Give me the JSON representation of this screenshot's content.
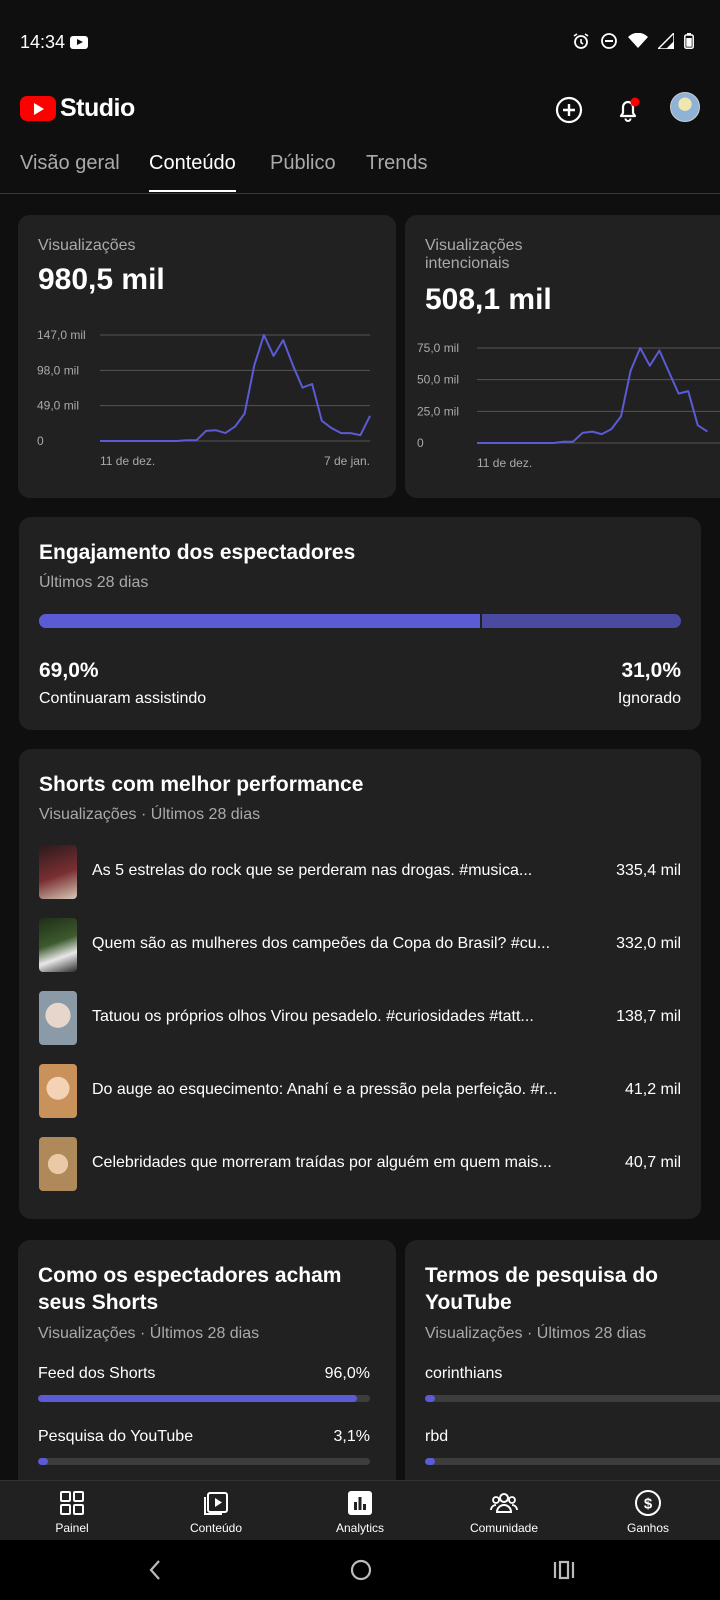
{
  "status_bar": {
    "time": "14:34"
  },
  "header": {
    "logo_text": "Studio"
  },
  "tabs": [
    {
      "label": "Visão geral"
    },
    {
      "label": "Conteúdo"
    },
    {
      "label": "Público"
    },
    {
      "label": "Trends"
    }
  ],
  "views_card": {
    "label": "Visualizações",
    "value": "980,5 mil",
    "chart_data": {
      "type": "line",
      "y_ticks": [
        "147,0 mil",
        "98,0 mil",
        "49,0 mil",
        "0"
      ],
      "x_labels": [
        "11 de dez.",
        "7 de jan."
      ],
      "ylim": [
        0,
        147
      ],
      "values": [
        0,
        0,
        0,
        0,
        0,
        0,
        0,
        0,
        0,
        1,
        1,
        14,
        15,
        11,
        20,
        38,
        105,
        147,
        118,
        140,
        105,
        74,
        79,
        28,
        18,
        11,
        11,
        8,
        35
      ]
    }
  },
  "intentional_card": {
    "label": "Visualizações intencionais",
    "value": "508,1 mil",
    "chart_data": {
      "type": "line",
      "y_ticks": [
        "75,0 mil",
        "50,0 mil",
        "25,0 mil",
        "0"
      ],
      "x_labels": [
        "11 de dez."
      ],
      "ylim": [
        0,
        75
      ],
      "values": [
        0,
        0,
        0,
        0,
        0,
        0,
        0,
        0,
        0,
        1,
        1,
        8,
        9,
        7,
        11,
        21,
        57,
        75,
        61,
        73,
        56,
        39,
        41,
        14,
        9
      ]
    }
  },
  "engagement": {
    "title": "Engajamento dos espectadores",
    "subtitle": "Últimos 28 dias",
    "continued_fraction": 0.69,
    "continued_pct": "69,0%",
    "continued_label": "Continuaram assistindo",
    "skipped_pct": "31,0%",
    "skipped_label": "Ignorado"
  },
  "top_shorts": {
    "title": "Shorts com melhor performance",
    "subtitle": "Visualizações · Últimos 28 dias",
    "items": [
      {
        "title": "As 5 estrelas do rock que se perderam nas drogas. #musica...",
        "views": "335,4 mil",
        "thumb_color": "#7a2f32"
      },
      {
        "title": "Quem são as mulheres dos campeões da Copa do Brasil? #cu...",
        "views": "332,0 mil",
        "thumb_color": "#3d5a2e"
      },
      {
        "title": "Tatuou os próprios olhos Virou pesadelo. #curiosidades #tatt...",
        "views": "138,7 mil",
        "thumb_color": "#8a9aa6"
      },
      {
        "title": "Do auge ao esquecimento: Anahí e a pressão pela perfeição. #r...",
        "views": "41,2 mil",
        "thumb_color": "#c9925a"
      },
      {
        "title": "Celebridades que morreram traídas por alguém em quem mais...",
        "views": "40,7 mil",
        "thumb_color": "#b0895a"
      }
    ]
  },
  "traffic_card": {
    "title": "Como os espectadores acham seus Shorts",
    "subtitle": "Visualizações · Últimos 28 dias",
    "rows": [
      {
        "label": "Feed dos Shorts",
        "value": "96,0%",
        "fraction": 0.96
      },
      {
        "label": "Pesquisa do YouTube",
        "value": "3,1%",
        "fraction": 0.031
      }
    ]
  },
  "search_card": {
    "title": "Termos de pesquisa do YouTube",
    "subtitle": "Visualizações · Últimos 28 dias",
    "rows": [
      {
        "label": "corinthians",
        "fraction": 0.03
      },
      {
        "label": "rbd",
        "fraction": 0.03
      }
    ]
  },
  "bottom_nav": [
    {
      "label": "Painel",
      "icon": "dashboard-icon"
    },
    {
      "label": "Conteúdo",
      "icon": "content-icon"
    },
    {
      "label": "Analytics",
      "icon": "analytics-icon"
    },
    {
      "label": "Comunidade",
      "icon": "community-icon"
    },
    {
      "label": "Ganhos",
      "icon": "earnings-icon"
    }
  ],
  "colors": {
    "accent": "#5b5bd6",
    "brand_red": "#ff0000",
    "card_bg": "#212121",
    "page_bg": "#0f0f0f"
  }
}
